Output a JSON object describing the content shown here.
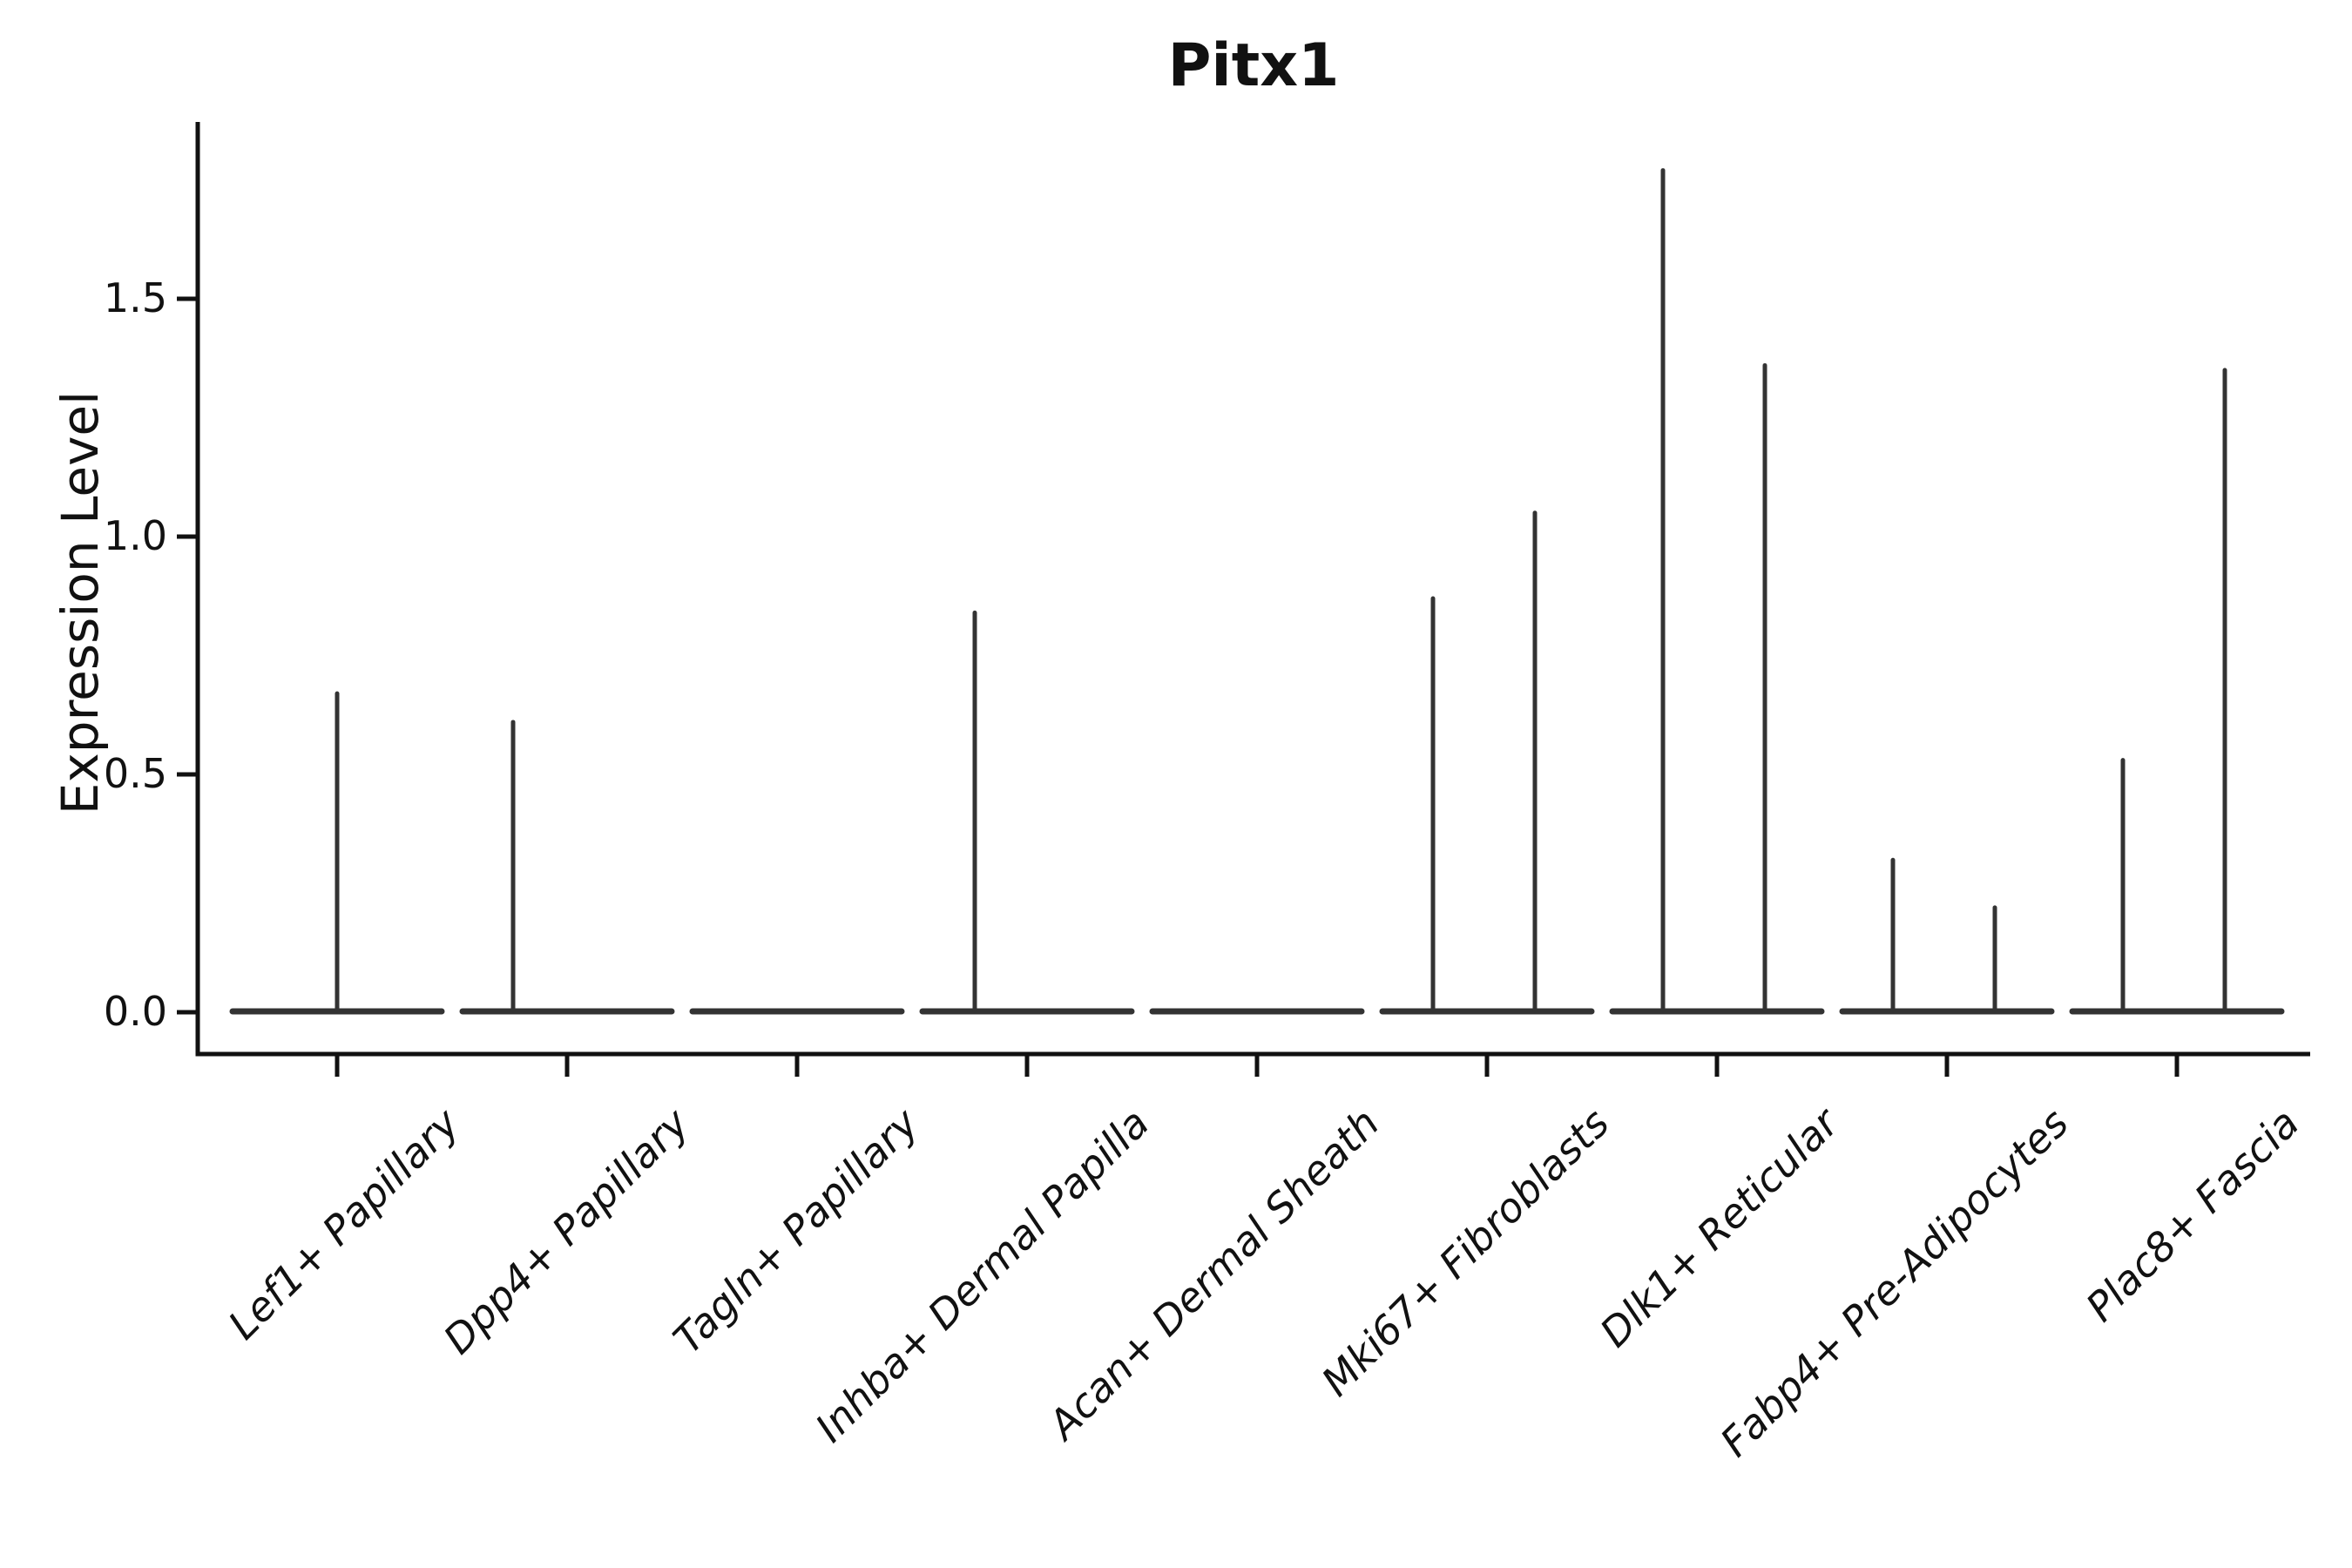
{
  "chart_data": {
    "type": "violin",
    "title": "Pitx1",
    "ylabel": "Expression Level",
    "xlabel": "",
    "y_tick_values": [
      0.0,
      0.5,
      1.0,
      1.5
    ],
    "y_tick_labels": [
      "0.0",
      "0.5",
      "1.0",
      "1.5"
    ],
    "ylim": [
      -0.09,
      1.87
    ],
    "grid": false,
    "legend": null,
    "categories": [
      "Lef1+ Papillary",
      "Dpp4+ Papillary",
      "Tagln+ Papillary",
      "Inhba+ Dermal Papilla",
      "Acan+ Dermal Sheath",
      "Mki67+ Fibroblasts",
      "Dlk1+ Reticular",
      "Fabp4+ Pre-Adipocytes",
      "Plac8+ Fascia"
    ],
    "series": [
      {
        "category": "Lef1+ Papillary",
        "baseline_value": 0,
        "spikes": [
          {
            "dx": 0,
            "max": 0.67
          }
        ]
      },
      {
        "category": "Dpp4+ Papillary",
        "baseline_value": 0,
        "spikes": [
          {
            "dx": -62,
            "max": 0.61
          }
        ]
      },
      {
        "category": "Tagln+ Papillary",
        "baseline_value": 0,
        "spikes": []
      },
      {
        "category": "Inhba+ Dermal Papilla",
        "baseline_value": 0,
        "spikes": [
          {
            "dx": -60,
            "max": 0.84
          }
        ]
      },
      {
        "category": "Acan+ Dermal Sheath",
        "baseline_value": 0,
        "spikes": []
      },
      {
        "category": "Mki67+ Fibroblasts",
        "baseline_value": 0,
        "spikes": [
          {
            "dx": -62,
            "max": 0.87
          },
          {
            "dx": 55,
            "max": 1.05
          }
        ]
      },
      {
        "category": "Dlk1+ Reticular",
        "baseline_value": 0,
        "spikes": [
          {
            "dx": -62,
            "max": 1.77
          },
          {
            "dx": 55,
            "max": 1.36
          }
        ]
      },
      {
        "category": "Fabp4+ Pre-Adipocytes",
        "baseline_value": 0,
        "spikes": [
          {
            "dx": -62,
            "max": 0.32
          },
          {
            "dx": 55,
            "max": 0.22
          }
        ]
      },
      {
        "category": "Plac8+ Fascia",
        "baseline_value": 0,
        "spikes": [
          {
            "dx": -62,
            "max": 0.53
          },
          {
            "dx": 55,
            "max": 1.35
          }
        ]
      }
    ],
    "colors": {
      "violin_line": "#333333",
      "axis": "#111111",
      "text": "#111111",
      "background": "#ffffff"
    }
  }
}
